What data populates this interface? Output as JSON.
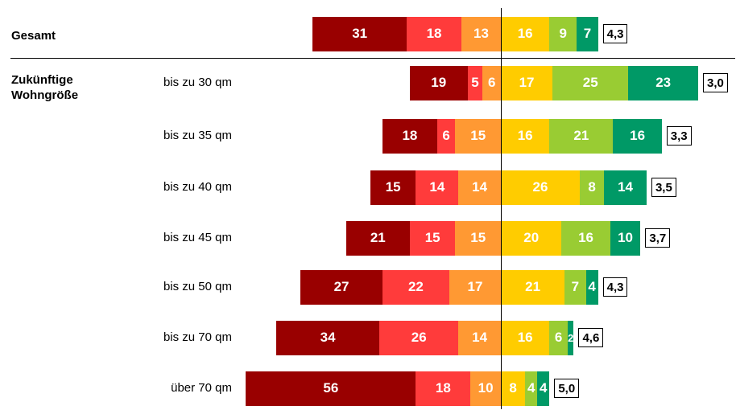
{
  "chart_data": {
    "type": "bar",
    "orientation": "horizontal-stacked-diverging",
    "colors": [
      "#990000",
      "#ff3b3b",
      "#ff9933",
      "#ffcc00",
      "#99cc33",
      "#009966"
    ],
    "groups": [
      {
        "title": "Gesamt"
      },
      {
        "title": "Zukünftige Wohngröße"
      }
    ],
    "rows": [
      {
        "group": 0,
        "label": "",
        "values": [
          31,
          18,
          13,
          16,
          9,
          7
        ],
        "mean": "4,3"
      },
      {
        "group": 1,
        "label": "bis zu 30 qm",
        "values": [
          19,
          5,
          6,
          17,
          25,
          23
        ],
        "mean": "3,0"
      },
      {
        "group": 1,
        "label": "bis zu 35 qm",
        "values": [
          18,
          6,
          15,
          16,
          21,
          16
        ],
        "mean": "3,3"
      },
      {
        "group": 1,
        "label": "bis zu 40 qm",
        "values": [
          15,
          14,
          14,
          26,
          8,
          14
        ],
        "mean": "3,5"
      },
      {
        "group": 1,
        "label": "bis zu 45 qm",
        "values": [
          21,
          15,
          15,
          20,
          16,
          10
        ],
        "mean": "3,7"
      },
      {
        "group": 1,
        "label": "bis zu 50 qm",
        "values": [
          27,
          22,
          17,
          21,
          7,
          4
        ],
        "mean": "4,3"
      },
      {
        "group": 1,
        "label": "bis zu 70 qm",
        "values": [
          34,
          26,
          14,
          16,
          6,
          2
        ],
        "mean": "4,6"
      },
      {
        "group": 1,
        "label": "über 70 qm",
        "values": [
          56,
          18,
          10,
          8,
          4,
          4
        ],
        "mean": "5,0"
      }
    ]
  }
}
